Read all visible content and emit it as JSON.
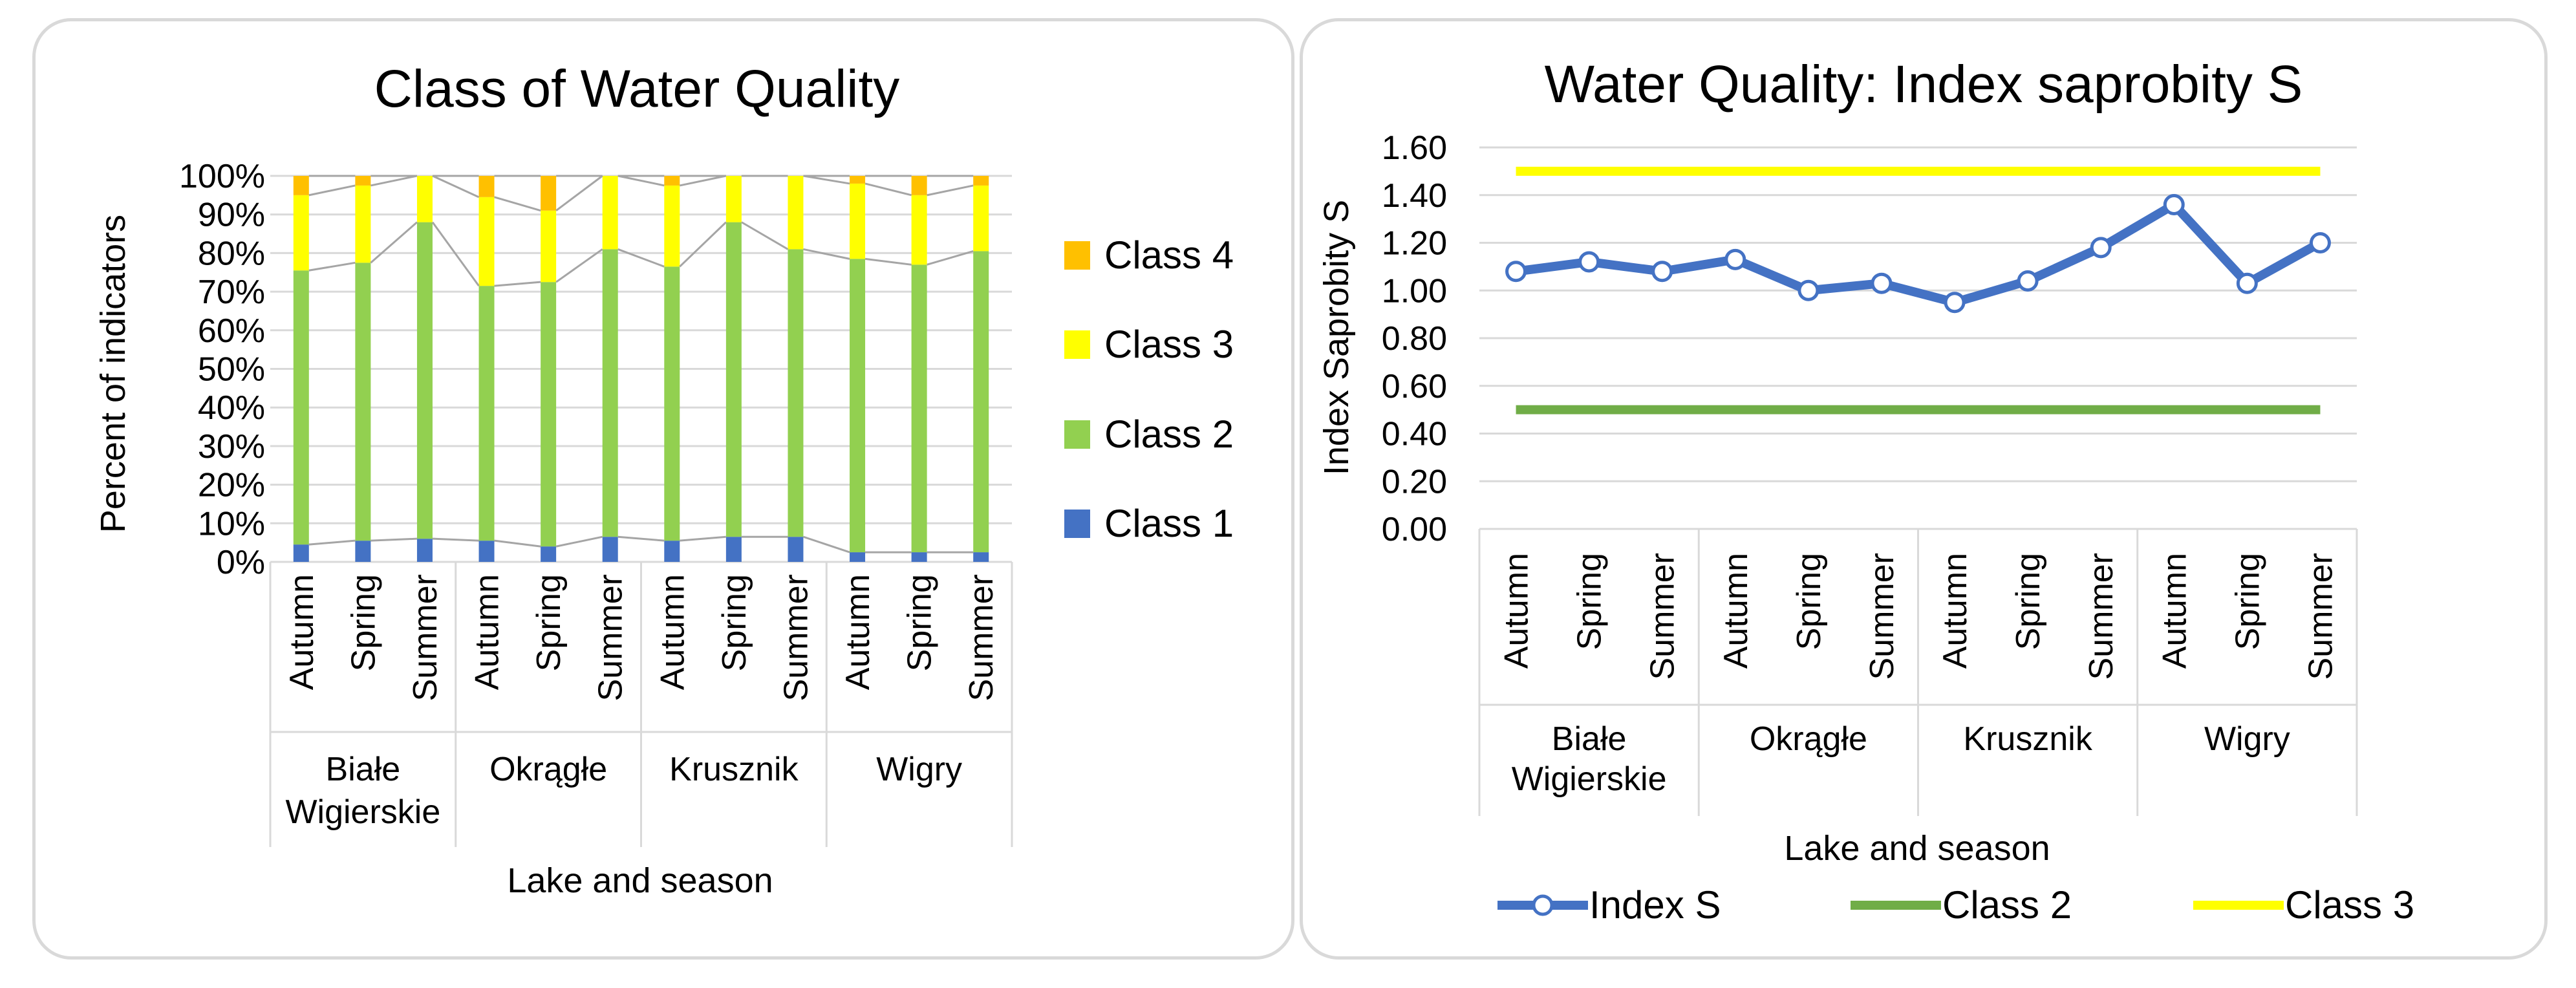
{
  "chart_data": [
    {
      "type": "bar",
      "stacked": "percent",
      "title": "Class of Water Quality",
      "ylabel": "Percent of indicators",
      "xlabel": "Lake and season",
      "ylim": [
        0,
        100
      ],
      "yticks": [
        "0%",
        "10%",
        "20%",
        "30%",
        "40%",
        "50%",
        "60%",
        "70%",
        "80%",
        "90%",
        "100%"
      ],
      "groups": [
        {
          "name": "Białe Wigierskie",
          "lines": [
            "Białe",
            "Wigierskie"
          ],
          "seasons": [
            "Autumn",
            "Spring",
            "Summer"
          ]
        },
        {
          "name": "Okrągłe",
          "lines": [
            "Okrągłe"
          ],
          "seasons": [
            "Autumn",
            "Spring",
            "Summer"
          ]
        },
        {
          "name": "Krusznik",
          "lines": [
            "Krusznik"
          ],
          "seasons": [
            "Autumn",
            "Spring",
            "Summer"
          ]
        },
        {
          "name": "Wigry",
          "lines": [
            "Wigry"
          ],
          "seasons": [
            "Autumn",
            "Spring",
            "Summer"
          ]
        }
      ],
      "series": [
        {
          "name": "Class 1",
          "color": "#4472C4",
          "values": [
            4.5,
            5.5,
            6,
            5.5,
            4,
            6.5,
            5.5,
            6.5,
            6.5,
            2.5,
            2.5,
            2.5
          ]
        },
        {
          "name": "Class 2",
          "color": "#92D050",
          "values": [
            71,
            72,
            82,
            66,
            68.5,
            74.5,
            71,
            81.5,
            74.5,
            76,
            74.5,
            78
          ]
        },
        {
          "name": "Class 3",
          "color": "#FFFF00",
          "values": [
            19.5,
            20,
            12,
            23,
            18.5,
            19,
            21,
            12,
            19,
            19.5,
            18,
            17
          ]
        },
        {
          "name": "Class 4",
          "color": "#FFC000",
          "values": [
            5,
            2.5,
            0,
            5.5,
            9,
            0,
            2.5,
            0,
            0,
            2,
            5,
            2.5
          ]
        }
      ],
      "legend": [
        "Class 4",
        "Class 3",
        "Class 2",
        "Class 1"
      ],
      "legend_position": "right"
    },
    {
      "type": "line",
      "title": "Water Quality: Index saprobity S",
      "ylabel": "Index Saprobity S",
      "xlabel": "Lake and season",
      "ylim": [
        0,
        1.6
      ],
      "yticks": [
        "0.00",
        "0.20",
        "0.40",
        "0.60",
        "0.80",
        "1.00",
        "1.20",
        "1.40",
        "1.60"
      ],
      "groups": [
        {
          "name": "Białe Wigierskie",
          "lines": [
            "Białe",
            "Wigierskie"
          ],
          "seasons": [
            "Autumn",
            "Spring",
            "Summer"
          ]
        },
        {
          "name": "Okrągłe",
          "lines": [
            "Okrągłe"
          ],
          "seasons": [
            "Autumn",
            "Spring",
            "Summer"
          ]
        },
        {
          "name": "Krusznik",
          "lines": [
            "Krusznik"
          ],
          "seasons": [
            "Autumn",
            "Spring",
            "Summer"
          ]
        },
        {
          "name": "Wigry",
          "lines": [
            "Wigry"
          ],
          "seasons": [
            "Autumn",
            "Spring",
            "Summer"
          ]
        }
      ],
      "series": [
        {
          "name": "Index S",
          "color": "#4472C4",
          "values": [
            1.08,
            1.12,
            1.08,
            1.13,
            1.0,
            1.03,
            0.95,
            1.04,
            1.18,
            1.36,
            1.03,
            1.2
          ]
        },
        {
          "name": "Class 2",
          "color": "#70AD47",
          "values": [
            0.5,
            0.5,
            0.5,
            0.5,
            0.5,
            0.5,
            0.5,
            0.5,
            0.5,
            0.5,
            0.5,
            0.5
          ]
        },
        {
          "name": "Class 3",
          "color": "#FFFF00",
          "values": [
            1.5,
            1.5,
            1.5,
            1.5,
            1.5,
            1.5,
            1.5,
            1.5,
            1.5,
            1.5,
            1.5,
            1.5
          ]
        }
      ],
      "legend": [
        "Index S",
        "Class 2",
        "Class 3"
      ],
      "legend_position": "bottom"
    }
  ]
}
